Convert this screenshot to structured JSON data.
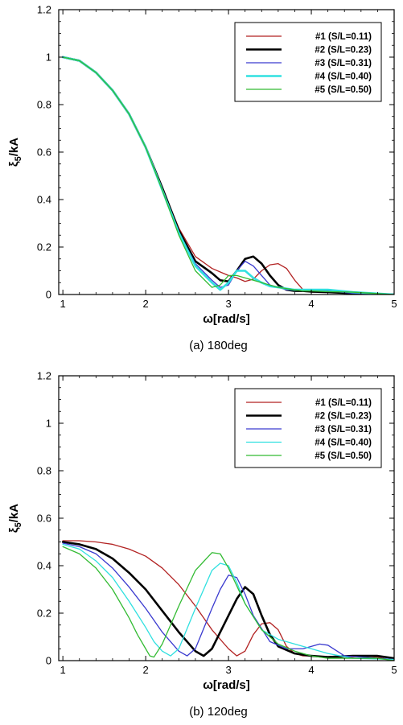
{
  "chart_data": [
    {
      "type": "line",
      "caption": "(a)  180deg",
      "xlabel": "ω[rad/s]",
      "ylabel": "ξ5/kA",
      "ylabel_main": "ξ",
      "ylabel_sub": "5",
      "ylabel_rest": "/kA",
      "xlim": [
        0.95,
        5
      ],
      "ylim": [
        0,
        1.2
      ],
      "xticks": [
        "1",
        "2",
        "3",
        "4",
        "5"
      ],
      "yticks": [
        "0",
        "0.2",
        "0.4",
        "0.6",
        "0.8",
        "1",
        "1.2"
      ],
      "legend_position": "top-right",
      "series": [
        {
          "name": "#1 (S/L=0.11)",
          "color": "#b22222",
          "width": 1.3,
          "x": [
            1.0,
            1.2,
            1.4,
            1.6,
            1.8,
            2.0,
            2.2,
            2.4,
            2.6,
            2.8,
            2.9,
            3.0,
            3.1,
            3.2,
            3.3,
            3.4,
            3.5,
            3.6,
            3.7,
            3.8,
            3.9,
            4.0,
            4.2,
            4.5,
            5.0
          ],
          "y": [
            1.0,
            0.985,
            0.935,
            0.86,
            0.76,
            0.62,
            0.45,
            0.28,
            0.16,
            0.11,
            0.095,
            0.08,
            0.07,
            0.055,
            0.065,
            0.1,
            0.125,
            0.13,
            0.11,
            0.06,
            0.02,
            0.01,
            0.012,
            0.005,
            0.0
          ]
        },
        {
          "name": "#2 (S/L=0.23)",
          "color": "#000000",
          "width": 2.6,
          "x": [
            1.0,
            1.2,
            1.4,
            1.6,
            1.8,
            2.0,
            2.2,
            2.4,
            2.6,
            2.8,
            2.9,
            3.0,
            3.1,
            3.2,
            3.3,
            3.4,
            3.5,
            3.6,
            3.7,
            3.8,
            3.9,
            4.0,
            4.2,
            4.5,
            5.0
          ],
          "y": [
            1.0,
            0.985,
            0.935,
            0.86,
            0.76,
            0.62,
            0.45,
            0.27,
            0.14,
            0.09,
            0.06,
            0.055,
            0.1,
            0.15,
            0.16,
            0.13,
            0.08,
            0.04,
            0.02,
            0.015,
            0.015,
            0.012,
            0.01,
            0.005,
            0.0
          ]
        },
        {
          "name": "#3 (S/L=0.31)",
          "color": "#3a3acf",
          "width": 1.3,
          "x": [
            1.0,
            1.2,
            1.4,
            1.6,
            1.8,
            2.0,
            2.2,
            2.4,
            2.6,
            2.8,
            2.9,
            3.0,
            3.1,
            3.2,
            3.3,
            3.4,
            3.5,
            3.6,
            3.7,
            3.8,
            3.9,
            4.0,
            4.2,
            4.5,
            5.0
          ],
          "y": [
            1.0,
            0.985,
            0.935,
            0.86,
            0.76,
            0.62,
            0.44,
            0.26,
            0.13,
            0.06,
            0.03,
            0.04,
            0.1,
            0.14,
            0.12,
            0.08,
            0.04,
            0.03,
            0.02,
            0.02,
            0.02,
            0.02,
            0.015,
            0.005,
            0.0
          ]
        },
        {
          "name": "#4 (S/L=0.40)",
          "color": "#30e0e0",
          "width": 2.6,
          "x": [
            1.0,
            1.2,
            1.4,
            1.6,
            1.8,
            2.0,
            2.2,
            2.4,
            2.6,
            2.8,
            2.9,
            3.0,
            3.1,
            3.2,
            3.3,
            3.4,
            3.5,
            3.6,
            3.7,
            3.8,
            3.9,
            4.0,
            4.2,
            4.5,
            5.0
          ],
          "y": [
            1.0,
            0.985,
            0.935,
            0.86,
            0.76,
            0.62,
            0.44,
            0.26,
            0.12,
            0.05,
            0.02,
            0.05,
            0.1,
            0.1,
            0.07,
            0.05,
            0.035,
            0.03,
            0.025,
            0.02,
            0.02,
            0.02,
            0.02,
            0.01,
            0.0
          ]
        },
        {
          "name": "#5 (S/L=0.50)",
          "color": "#33bb33",
          "width": 1.3,
          "x": [
            1.0,
            1.2,
            1.4,
            1.6,
            1.8,
            2.0,
            2.2,
            2.4,
            2.6,
            2.8,
            2.9,
            3.0,
            3.1,
            3.2,
            3.3,
            3.4,
            3.5,
            3.6,
            3.7,
            3.8,
            3.9,
            4.0,
            4.2,
            4.5,
            5.0
          ],
          "y": [
            1.0,
            0.985,
            0.935,
            0.86,
            0.76,
            0.62,
            0.44,
            0.25,
            0.1,
            0.03,
            0.04,
            0.08,
            0.08,
            0.07,
            0.06,
            0.05,
            0.04,
            0.03,
            0.025,
            0.02,
            0.015,
            0.015,
            0.012,
            0.01,
            0.0
          ]
        }
      ]
    },
    {
      "type": "line",
      "caption": "(b)  120deg",
      "xlabel": "ω[rad/s]",
      "ylabel": "ξ5/kA",
      "ylabel_main": "ξ",
      "ylabel_sub": "5",
      "ylabel_rest": "/kA",
      "xlim": [
        0.95,
        5
      ],
      "ylim": [
        0,
        1.2
      ],
      "xticks": [
        "1",
        "2",
        "3",
        "4",
        "5"
      ],
      "yticks": [
        "0",
        "0.2",
        "0.4",
        "0.6",
        "0.8",
        "1",
        "1.2"
      ],
      "legend_position": "top-right",
      "series": [
        {
          "name": "#1 (S/L=0.11)",
          "color": "#b22222",
          "width": 1.3,
          "x": [
            1.0,
            1.2,
            1.4,
            1.6,
            1.8,
            2.0,
            2.2,
            2.4,
            2.6,
            2.8,
            3.0,
            3.1,
            3.2,
            3.3,
            3.4,
            3.5,
            3.6,
            3.7,
            3.8,
            3.9,
            4.0,
            4.2,
            4.4,
            4.6,
            4.8,
            5.0
          ],
          "y": [
            0.505,
            0.505,
            0.5,
            0.49,
            0.47,
            0.44,
            0.39,
            0.32,
            0.23,
            0.13,
            0.05,
            0.02,
            0.04,
            0.11,
            0.155,
            0.16,
            0.13,
            0.06,
            0.03,
            0.02,
            0.02,
            0.015,
            0.01,
            0.02,
            0.015,
            0.0
          ]
        },
        {
          "name": "#2 (S/L=0.23)",
          "color": "#000000",
          "width": 2.6,
          "x": [
            1.0,
            1.2,
            1.4,
            1.6,
            1.8,
            2.0,
            2.2,
            2.4,
            2.6,
            2.7,
            2.8,
            3.0,
            3.1,
            3.2,
            3.3,
            3.4,
            3.5,
            3.6,
            3.8,
            4.0,
            4.2,
            4.5,
            4.8,
            5.0
          ],
          "y": [
            0.5,
            0.49,
            0.47,
            0.43,
            0.37,
            0.3,
            0.21,
            0.12,
            0.04,
            0.02,
            0.05,
            0.19,
            0.26,
            0.31,
            0.28,
            0.19,
            0.11,
            0.06,
            0.03,
            0.02,
            0.015,
            0.02,
            0.02,
            0.01
          ]
        },
        {
          "name": "#3 (S/L=0.31)",
          "color": "#3a3acf",
          "width": 1.3,
          "x": [
            1.0,
            1.2,
            1.4,
            1.6,
            1.8,
            2.0,
            2.2,
            2.4,
            2.5,
            2.6,
            2.8,
            2.9,
            3.0,
            3.1,
            3.2,
            3.3,
            3.5,
            3.7,
            3.9,
            4.1,
            4.2,
            4.4,
            4.6,
            5.0
          ],
          "y": [
            0.495,
            0.48,
            0.45,
            0.39,
            0.31,
            0.22,
            0.12,
            0.04,
            0.02,
            0.05,
            0.22,
            0.3,
            0.36,
            0.35,
            0.28,
            0.19,
            0.08,
            0.05,
            0.05,
            0.07,
            0.065,
            0.02,
            0.015,
            0.005
          ]
        },
        {
          "name": "#4 (S/L=0.40)",
          "color": "#30e0e0",
          "width": 1.3,
          "x": [
            1.0,
            1.2,
            1.4,
            1.6,
            1.8,
            2.0,
            2.1,
            2.2,
            2.3,
            2.4,
            2.6,
            2.8,
            2.9,
            3.0,
            3.1,
            3.2,
            3.4,
            3.6,
            3.8,
            4.0,
            4.2,
            4.5,
            5.0
          ],
          "y": [
            0.49,
            0.47,
            0.42,
            0.35,
            0.25,
            0.14,
            0.08,
            0.04,
            0.02,
            0.05,
            0.22,
            0.38,
            0.41,
            0.4,
            0.33,
            0.24,
            0.13,
            0.09,
            0.07,
            0.05,
            0.03,
            0.01,
            0.005
          ]
        },
        {
          "name": "#5 (S/L=0.50)",
          "color": "#33bb33",
          "width": 1.3,
          "x": [
            1.0,
            1.2,
            1.4,
            1.6,
            1.8,
            1.9,
            2.0,
            2.05,
            2.1,
            2.2,
            2.4,
            2.6,
            2.8,
            2.9,
            3.0,
            3.2,
            3.4,
            3.6,
            3.8,
            4.0,
            4.2,
            4.5,
            4.8,
            5.0
          ],
          "y": [
            0.48,
            0.45,
            0.39,
            0.3,
            0.18,
            0.11,
            0.05,
            0.02,
            0.015,
            0.07,
            0.23,
            0.38,
            0.455,
            0.45,
            0.39,
            0.24,
            0.13,
            0.07,
            0.04,
            0.02,
            0.01,
            0.01,
            0.01,
            0.0
          ]
        }
      ]
    }
  ]
}
